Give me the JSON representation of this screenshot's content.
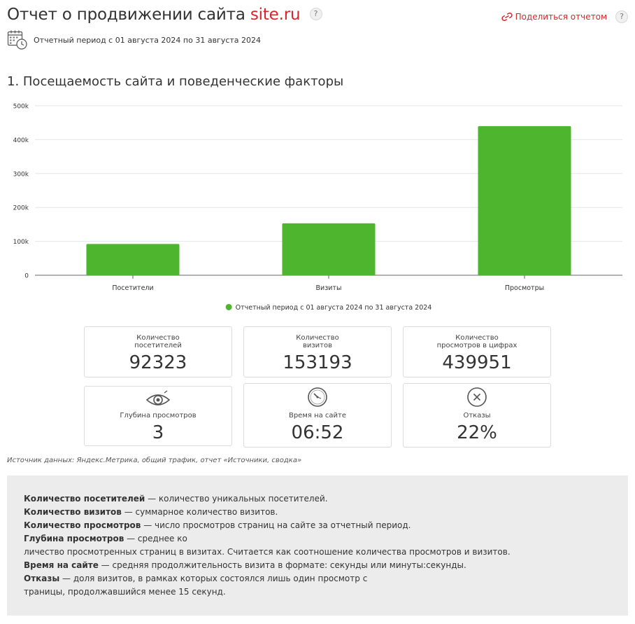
{
  "header": {
    "title_prefix": "Отчет о продвижении сайта",
    "title_site": "site.ru",
    "help_glyph": "?",
    "share_label": "Поделиться отчетом"
  },
  "period": {
    "text": "Отчетный период с 01 августа 2024 по 31 августа 2024"
  },
  "section": {
    "title": "1. Посещаемость сайта и поведенческие факторы"
  },
  "colors": {
    "accent": "#d9262c",
    "bar": "#4eb52e"
  },
  "chart_data": {
    "type": "bar",
    "categories": [
      "Посетители",
      "Визиты",
      "Просмотры"
    ],
    "series": [
      {
        "name": "Отчетный период с 01 августа 2024 по 31 августа 2024",
        "values": [
          92323,
          153193,
          439951
        ]
      }
    ],
    "yticks": [
      "0",
      "100k",
      "200k",
      "300k",
      "400k",
      "500k"
    ],
    "ylim": [
      0,
      500000
    ],
    "grid": true,
    "legend": "bottom-center"
  },
  "cards": [
    {
      "label": "Количество\nпосетителей",
      "value": "92323"
    },
    {
      "label": "Количество\nвизитов",
      "value": "153193"
    },
    {
      "label": "Количество\nпросмотров в цифрах",
      "value": "439951"
    },
    {
      "label": "Глубина просмотров",
      "value": "3",
      "icon": "eye-icon"
    },
    {
      "label": "Время на сайте",
      "value": "06:52",
      "icon": "clock-icon"
    },
    {
      "label": "Отказы",
      "value": "22%",
      "icon": "close-circle-icon"
    }
  ],
  "source": "Источник данных: Яндекс.Метрика, общий трафик, отчет «Источники, сводка»",
  "glossary": [
    {
      "term": "Количество посетителей",
      "line1": " — количество уникальных посетителей.",
      "line2": ""
    },
    {
      "term": "Количество визитов",
      "line1": " — суммарное количество визитов.",
      "line2": ""
    },
    {
      "term": "Количество просмотров",
      "line1": " — число просмотров страниц на сайте за отчетный период.",
      "line2": ""
    },
    {
      "term": "Глубина просмотров",
      "line1": " — среднее ко",
      "line2": "личество просмотренных страниц в визитах. Считается как соотношение количества просмотров и визитов."
    },
    {
      "term": "Время на сайте",
      "line1": " — средняя продолжительность визита в формате: секунды или минуты:секунды.",
      "line2": ""
    },
    {
      "term": "Отказы",
      "line1": " — доля визитов, в рамках которых состоялся лишь один просмотр с",
      "line2": "траницы, продолжавшийся менее 15 секунд."
    }
  ]
}
